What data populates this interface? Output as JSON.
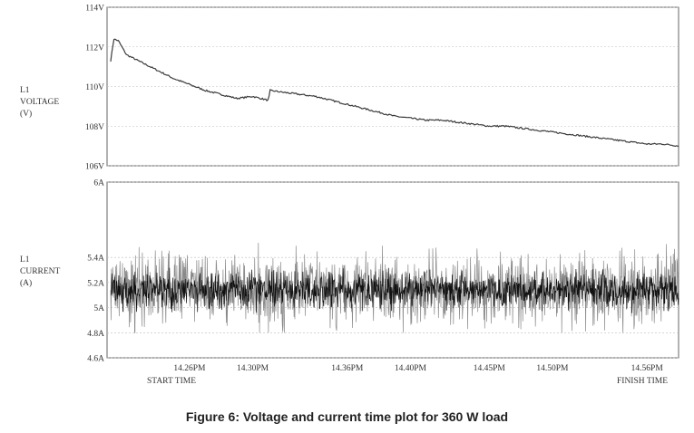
{
  "caption": "Figure 6: Voltage and current time plot for 360 W load",
  "chart_data": [
    {
      "type": "line",
      "ylabel_lines": [
        "L1",
        "VOLTAGE",
        "(V)"
      ],
      "yticks": [
        "114V",
        "112V",
        "110V",
        "108V",
        "106V"
      ],
      "ytick_values": [
        114,
        112,
        110,
        108,
        106
      ],
      "ylim": [
        106,
        114
      ],
      "grid": true,
      "x_minutes": [
        0,
        0.2,
        0.5,
        1,
        2,
        3,
        4,
        5,
        6,
        7,
        8,
        9,
        10,
        10.1,
        11,
        12,
        13,
        14,
        15,
        16,
        17,
        18,
        19,
        20,
        21,
        22,
        23,
        24,
        25,
        26,
        27,
        28,
        29,
        30,
        31,
        32,
        33,
        34,
        35,
        36
      ],
      "y_values": [
        111.3,
        112.4,
        112.3,
        111.6,
        111.2,
        110.8,
        110.4,
        110.1,
        109.8,
        109.6,
        109.4,
        109.5,
        109.3,
        109.8,
        109.7,
        109.6,
        109.5,
        109.3,
        109.1,
        108.9,
        108.7,
        108.5,
        108.4,
        108.3,
        108.3,
        108.2,
        108.1,
        108.0,
        108.0,
        107.9,
        107.8,
        107.7,
        107.6,
        107.5,
        107.4,
        107.3,
        107.2,
        107.1,
        107.1,
        107.0
      ]
    },
    {
      "type": "line",
      "ylabel_lines": [
        "L1",
        "CURRENT",
        "(A)"
      ],
      "yticks": [
        "6A",
        "5.4A",
        "5.2A",
        "5A",
        "4.8A",
        "4.6A"
      ],
      "ytick_values": [
        6,
        5.4,
        5.2,
        5,
        4.8,
        4.6
      ],
      "ylim": [
        4.6,
        6
      ],
      "grid": true,
      "mean": 5.14,
      "range": [
        4.8,
        5.55
      ],
      "xticks": [
        "14.26PM",
        "14.30PM",
        "14.36PM",
        "14.40PM",
        "14.45PM",
        "14.50PM",
        "14.56PM"
      ],
      "xtick_minutes": [
        5,
        9,
        15,
        19,
        24,
        28,
        34
      ],
      "start_label": "START TIME",
      "finish_label": "FINISH TIME"
    }
  ]
}
